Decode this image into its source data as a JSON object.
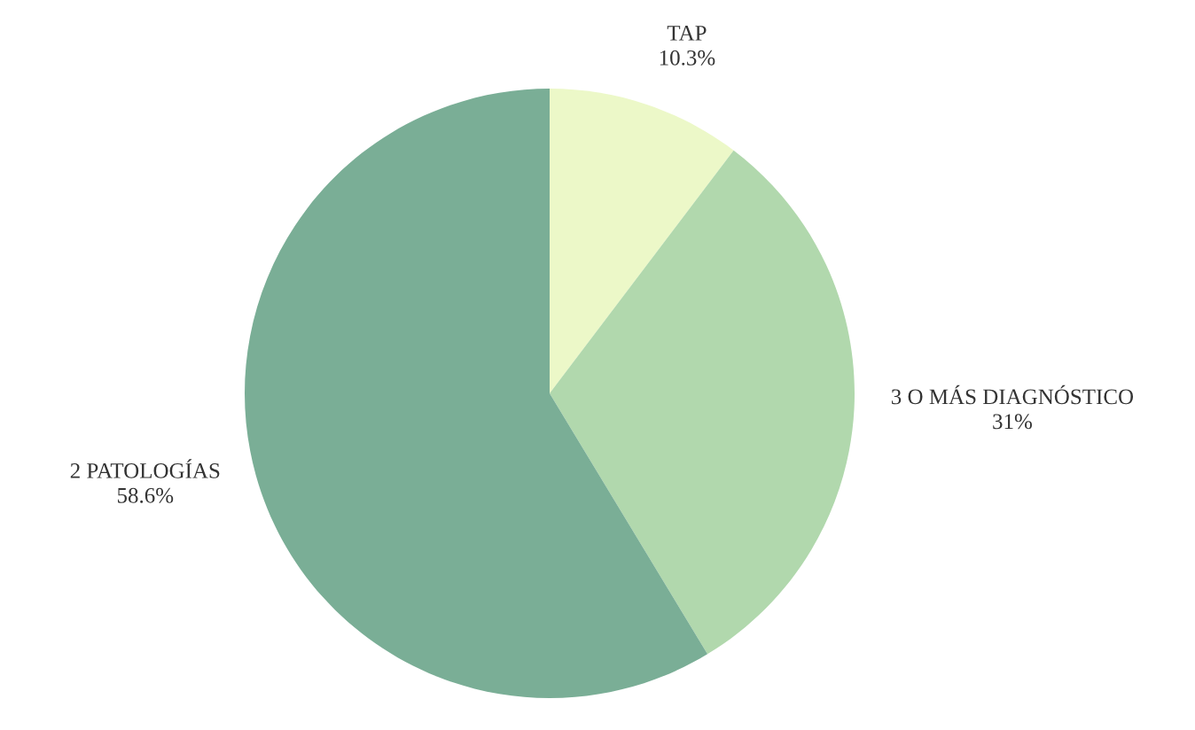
{
  "chart_data": {
    "type": "pie",
    "categories": [
      "TAP",
      "3 O MÁS DIAGNÓSTICO",
      "2 PATOLOGÍAS"
    ],
    "values": [
      10.3,
      31,
      58.6
    ],
    "value_labels": [
      "10.3%",
      "31%",
      "58.6%"
    ],
    "colors": [
      "#ecf8c8",
      "#b1d8ad",
      "#7aae96"
    ],
    "legend": false
  }
}
